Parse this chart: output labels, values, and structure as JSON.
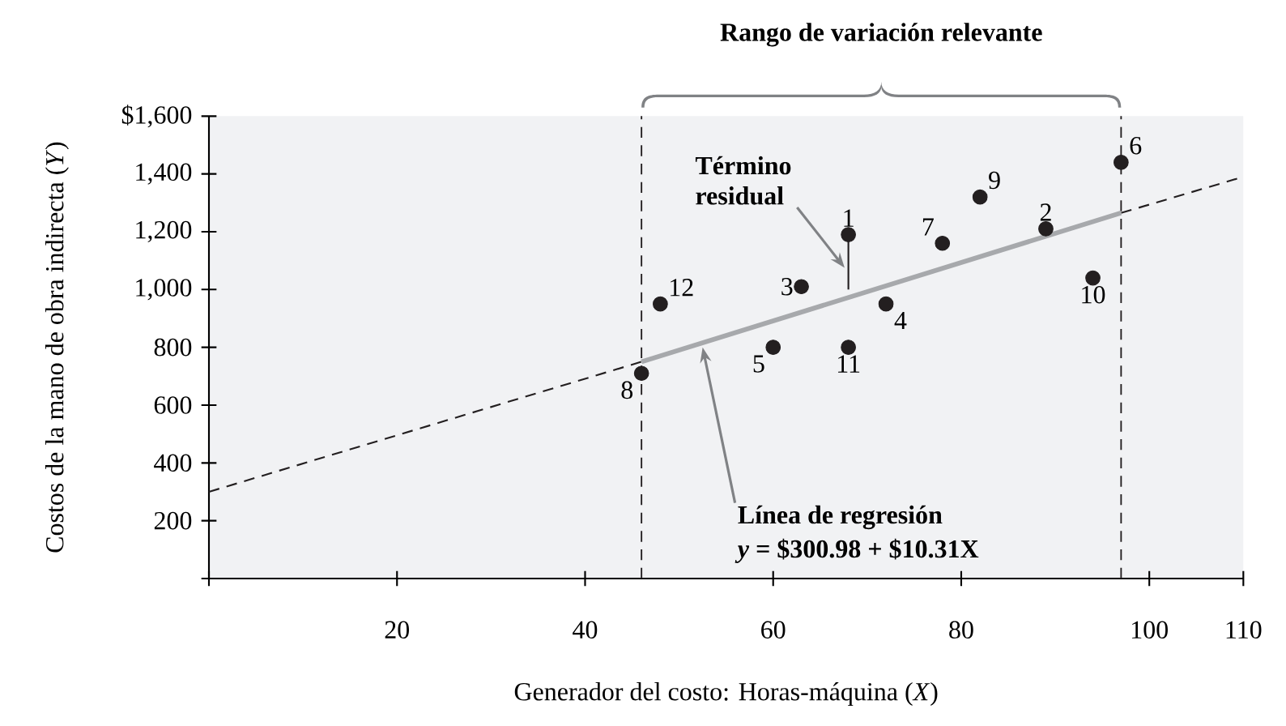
{
  "chart_data": {
    "type": "scatter",
    "title": "Rango de variación relevante",
    "xlabel": "Generador del costo: Horas-máquina (*X*)",
    "ylabel": "Costos de la mano de obra indirecta (*Y*)",
    "xlim": [
      0,
      110
    ],
    "ylim": [
      0,
      1600
    ],
    "xticks": [
      {
        "value": 0,
        "label": null
      },
      20,
      40,
      60,
      80,
      100,
      110
    ],
    "yticks": [
      {
        "value": 0,
        "label": null
      },
      {
        "value": 200,
        "label": "200"
      },
      {
        "value": 400,
        "label": "400"
      },
      {
        "value": 600,
        "label": "600"
      },
      {
        "value": 800,
        "label": "800"
      },
      {
        "value": 1000,
        "label": "1,000"
      },
      {
        "value": 1200,
        "label": "1,200"
      },
      {
        "value": 1400,
        "label": "1,400"
      },
      {
        "value": 1600,
        "label": "$1,600"
      }
    ],
    "grid": false,
    "series": [
      {
        "type": "line",
        "line_style": "dashed",
        "color": "#231f20",
        "x": [
          0,
          46,
          71,
          97,
          110
        ],
        "values": [
          300,
          750,
          null,
          1265,
          1390
        ]
      },
      {
        "type": "line",
        "line_style": "solid",
        "color": "#a7a9ac",
        "x": [
          46,
          97
        ],
        "values": [
          750,
          1265
        ]
      },
      {
        "type": "line",
        "line_style": "solid",
        "color": "#231f20",
        "x": [
          68,
          68
        ],
        "values": [
          1190,
          1000
        ]
      },
      {
        "type": "scatter",
        "marker": "circle",
        "color": "#231f20",
        "x": [
          68,
          89,
          63,
          72,
          60,
          97,
          78,
          46,
          82,
          94,
          68,
          48
        ],
        "values": [
          1190,
          1210,
          1010,
          950,
          800,
          1440,
          1160,
          710,
          1320,
          1040,
          800,
          950
        ]
      }
    ],
    "ref_lines": [
      {
        "axis": "x",
        "value": 46,
        "line_style": "dashed",
        "color": "#231f20"
      },
      {
        "axis": "x",
        "value": 97,
        "line_style": "dashed",
        "color": "#231f20"
      }
    ],
    "annotations": [
      {
        "text": "Término residual",
        "x": 67.6,
        "y": 1075
      },
      {
        "text": "Línea de regresión",
        "x": 52.5,
        "y": 800
      },
      "*y* = $300.98 + $10.31X",
      {
        "text": "1",
        "x": 68,
        "y": 1190
      },
      {
        "text": "2",
        "x": 89,
        "y": 1210
      },
      {
        "text": "3",
        "x": 63,
        "y": 1010
      },
      {
        "text": "4",
        "x": 72,
        "y": 950
      },
      {
        "text": "5",
        "x": 60,
        "y": 800
      },
      {
        "text": "6",
        "x": 97,
        "y": 1440
      },
      {
        "text": "7",
        "x": 78,
        "y": 1160
      },
      {
        "text": "8",
        "x": 46,
        "y": 710
      },
      {
        "text": "9",
        "x": 82,
        "y": 1320
      },
      {
        "text": "10",
        "x": 94,
        "y": 1040
      },
      {
        "text": "11",
        "x": 68,
        "y": 800
      },
      {
        "text": "12",
        "x": 48,
        "y": 950
      }
    ]
  }
}
